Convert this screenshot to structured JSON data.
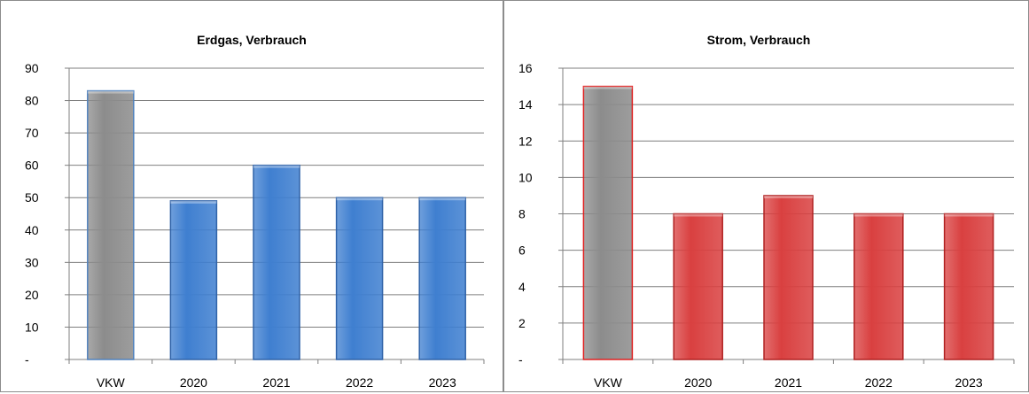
{
  "chart_data": [
    {
      "type": "bar",
      "title": "Erdgas,  Verbrauch",
      "categories": [
        "VKW",
        "2020",
        "2021",
        "2022",
        "2023"
      ],
      "values": [
        83,
        49,
        60,
        50,
        50
      ],
      "ylim": [
        0,
        90
      ],
      "yticks": [
        0,
        10,
        20,
        30,
        40,
        50,
        60,
        70,
        80,
        90
      ],
      "ytick_labels": [
        "-",
        "10",
        "20",
        "30",
        "40",
        "50",
        "60",
        "70",
        "80",
        "90"
      ],
      "xlabel": "",
      "ylabel": "",
      "grid": true,
      "legend": "none",
      "bar_colors": [
        "#8c8c8c",
        "#3f7fd0",
        "#3f7fd0",
        "#3f7fd0",
        "#3f7fd0"
      ],
      "bar_edge_colors": [
        "#4f81bd",
        "#2f62a8",
        "#2f62a8",
        "#2f62a8",
        "#2f62a8"
      ]
    },
    {
      "type": "bar",
      "title": "Strom, Verbrauch",
      "categories": [
        "VKW",
        "2020",
        "2021",
        "2022",
        "2023"
      ],
      "values": [
        15,
        8,
        9,
        8,
        8
      ],
      "ylim": [
        0,
        16
      ],
      "yticks": [
        0,
        2,
        4,
        6,
        8,
        10,
        12,
        14,
        16
      ],
      "ytick_labels": [
        "-",
        "2",
        "4",
        "6",
        "8",
        "10",
        "12",
        "14",
        "16"
      ],
      "xlabel": "",
      "ylabel": "",
      "grid": true,
      "legend": "none",
      "bar_colors": [
        "#8c8c8c",
        "#d94040",
        "#d94040",
        "#d94040",
        "#d94040"
      ],
      "bar_edge_colors": [
        "#e02020",
        "#b02020",
        "#b02020",
        "#b02020",
        "#b02020"
      ]
    }
  ]
}
